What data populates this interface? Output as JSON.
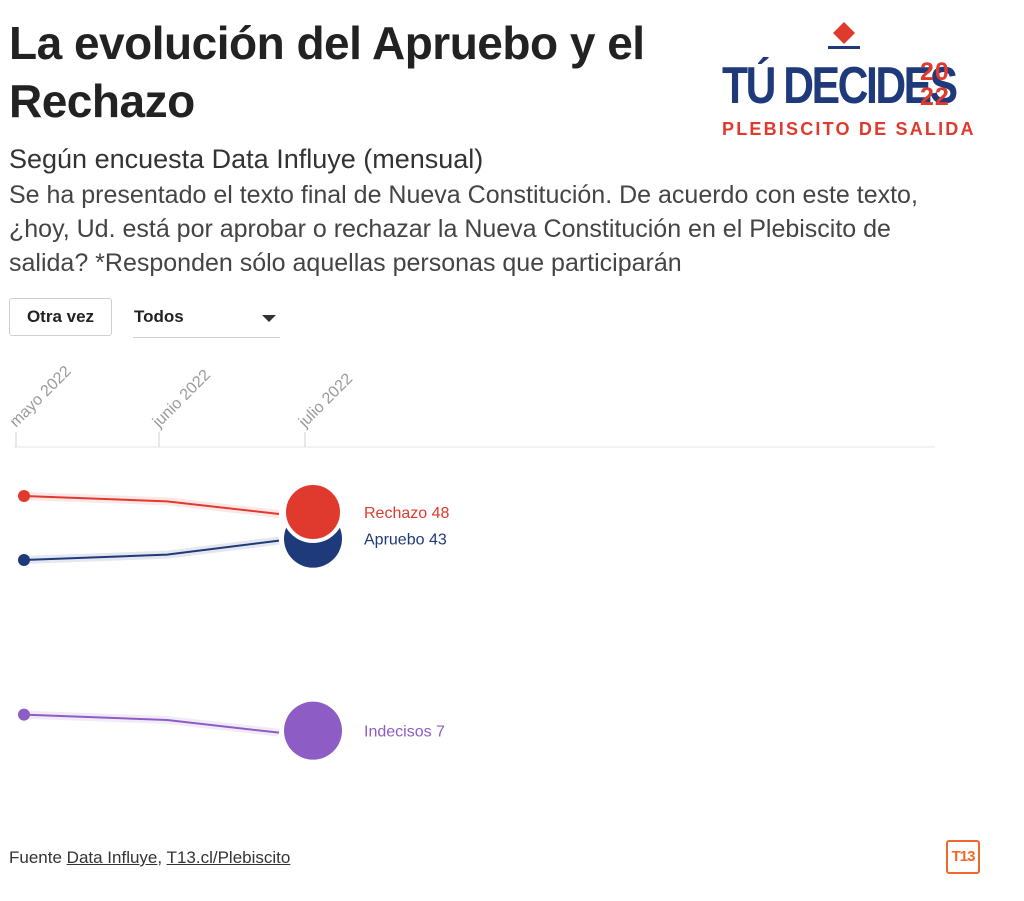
{
  "header": {
    "title": "La evolución del Apruebo y el Rechazo",
    "subtitle": "Según encuesta Data Influye (mensual)",
    "question": "Se ha presentado el texto final de Nueva Constitución. De acuerdo con este texto, ¿hoy, Ud. está por aprobar o rechazar la Nueva Constitución en el Plebiscito de salida? *Responden sólo aquellas personas que participarán"
  },
  "logo": {
    "main": "TÚ DECIDES",
    "year_top": "20",
    "year_bottom": "22",
    "sub": "PLEBISCITO DE SALIDA"
  },
  "controls": {
    "replay_label": "Otra vez",
    "filter_value": "Todos"
  },
  "chart_data": {
    "type": "line",
    "x": [
      "mayo 2022",
      "junio 2022",
      "julio 2022"
    ],
    "series": [
      {
        "name": "Rechazo",
        "color": "#e03a2e",
        "values": [
          51,
          50,
          48
        ]
      },
      {
        "name": "Apruebo",
        "color": "#1f3a7a",
        "values": [
          39,
          40,
          43
        ]
      },
      {
        "name": "Indecisos",
        "color": "#8e5cc5",
        "values": [
          10,
          9,
          7
        ]
      }
    ],
    "end_labels": [
      "Rechazo 48",
      "Apruebo 43",
      "Indecisos 7"
    ],
    "ylim": [
      0,
      60
    ]
  },
  "footer": {
    "source_prefix": "Fuente",
    "source_link_1": "Data Influye",
    "separator": ",",
    "source_link_2": "T13.cl/Plebiscito",
    "brand": "T13"
  },
  "colors": {
    "rechazo": "#e03a2e",
    "apruebo": "#1f3a7a",
    "indecisos": "#8e5cc5",
    "brand_orange": "#ef6a2a"
  }
}
